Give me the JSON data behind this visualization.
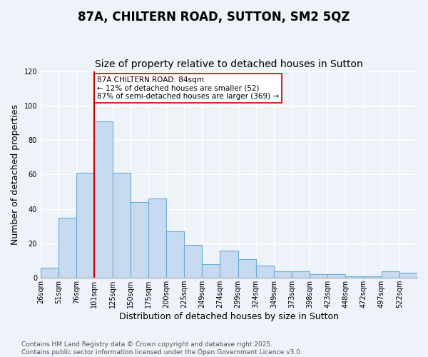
{
  "title": "87A, CHILTERN ROAD, SUTTON, SM2 5QZ",
  "subtitle": "Size of property relative to detached houses in Sutton",
  "xlabel": "Distribution of detached houses by size in Sutton",
  "ylabel": "Number of detached properties",
  "footer": "Contains HM Land Registry data © Crown copyright and database right 2025.\nContains public sector information licensed under the Open Government Licence v3.0.",
  "bin_labels": [
    "26sqm",
    "51sqm",
    "76sqm",
    "101sqm",
    "125sqm",
    "150sqm",
    "175sqm",
    "200sqm",
    "225sqm",
    "249sqm",
    "274sqm",
    "299sqm",
    "324sqm",
    "349sqm",
    "373sqm",
    "398sqm",
    "423sqm",
    "448sqm",
    "472sqm",
    "497sqm",
    "522sqm"
  ],
  "values": [
    6,
    35,
    61,
    91,
    61,
    44,
    46,
    27,
    19,
    8,
    16,
    11,
    7,
    4,
    4,
    2,
    2,
    1,
    1,
    4,
    3
  ],
  "bar_facecolor": "#c8daef",
  "bar_edgecolor": "#6aaed6",
  "bar_linewidth": 0.8,
  "vline_bin_index": 2,
  "vline_color": "#cc0000",
  "vline_linewidth": 1.5,
  "annotation_text": "87A CHILTERN ROAD: 84sqm\n← 12% of detached houses are smaller (52)\n87% of semi-detached houses are larger (369) →",
  "annotation_box_edgecolor": "#cc0000",
  "annotation_box_facecolor": "white",
  "ylim": [
    0,
    120
  ],
  "yticks": [
    0,
    20,
    40,
    60,
    80,
    100,
    120
  ],
  "bg_color": "#eef2f9",
  "grid_color": "white",
  "title_fontsize": 12,
  "subtitle_fontsize": 10,
  "label_fontsize": 9,
  "tick_fontsize": 7,
  "footer_fontsize": 6.5,
  "annotation_fontsize": 7.5
}
